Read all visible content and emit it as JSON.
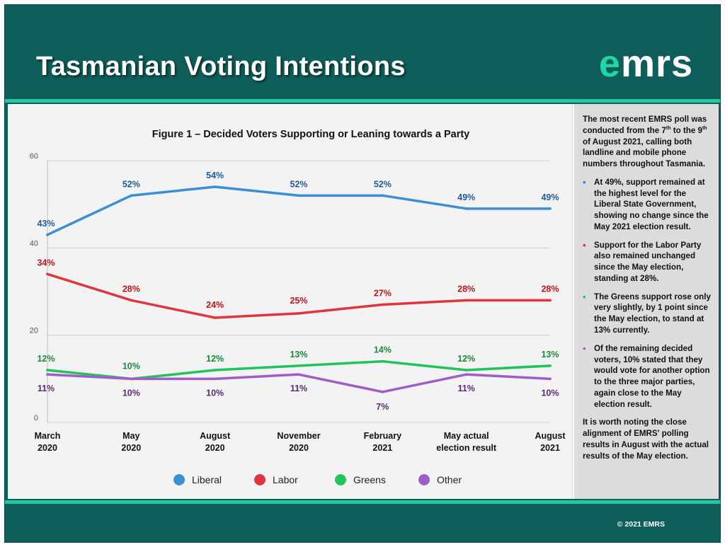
{
  "header": {
    "title": "Tasmanian Voting Intentions",
    "logo_prefix": "e",
    "logo_rest": "mrs"
  },
  "colors": {
    "background": "#0e5e5a",
    "accent_stripe": "#1fc9a2",
    "logo_accent": "#1fd6a4",
    "liberal": "#3b8fd4",
    "labor": "#e0353b",
    "greens": "#22c45a",
    "other": "#a05cc8"
  },
  "chart_data": {
    "type": "line",
    "title": "Figure 1 – Decided Voters Supporting or Leaning towards a Party",
    "categories": [
      [
        "March",
        "2020"
      ],
      [
        "May",
        "2020"
      ],
      [
        "August",
        "2020"
      ],
      [
        "November",
        "2020"
      ],
      [
        "February",
        "2021"
      ],
      [
        "May actual",
        "election result"
      ],
      [
        "August",
        "2021"
      ]
    ],
    "ylim": [
      0,
      60
    ],
    "yticks": [
      "0",
      "20",
      "40",
      "60"
    ],
    "grid": true,
    "legend_position": "bottom",
    "series": [
      {
        "name": "Liberal",
        "color": "#3b8fd4",
        "label_color": "#1f5a9c",
        "values": [
          43,
          52,
          54,
          52,
          52,
          49,
          49
        ],
        "labels": [
          "43%",
          "52%",
          "54%",
          "52%",
          "52%",
          "49%",
          "49%"
        ]
      },
      {
        "name": "Labor",
        "color": "#e0353b",
        "label_color": "#c0151c",
        "values": [
          34,
          28,
          24,
          25,
          27,
          28,
          28
        ],
        "labels": [
          "34%",
          "28%",
          "24%",
          "25%",
          "27%",
          "28%",
          "28%"
        ]
      },
      {
        "name": "Greens",
        "color": "#22c45a",
        "label_color": "#1b8a3c",
        "values": [
          12,
          10,
          12,
          13,
          14,
          12,
          13
        ],
        "labels": [
          "12%",
          "10%",
          "12%",
          "13%",
          "14%",
          "12%",
          "13%"
        ]
      },
      {
        "name": "Other",
        "color": "#a05cc8",
        "label_color": "#5a2a7a",
        "values": [
          11,
          10,
          10,
          11,
          7,
          11,
          10
        ],
        "labels": [
          "11%",
          "10%",
          "10%",
          "11%",
          "7%",
          "11%",
          "10%"
        ]
      }
    ]
  },
  "side_panel": {
    "intro": "The most recent EMRS poll was conducted from the 7th to the 9th of August 2021, calling both landline and mobile phone numbers throughout Tasmania.",
    "bullets": [
      {
        "color": "#2f7fd0",
        "text": "At 49%, support remained at the highest level for the Liberal State Government, showing no change since the May 2021 election result."
      },
      {
        "color": "#e0353b",
        "text": "Support for the Labor Party also remained unchanged since the May election, standing at 28%."
      },
      {
        "color": "#22c45a",
        "text": "The Greens support rose only very slightly, by 1 point since the May election, to stand at 13% currently."
      },
      {
        "color": "#a05cc8",
        "text": "Of the remaining decided voters, 10% stated that they would vote for another option to the three major parties, again close to the May election result."
      }
    ],
    "closing": "It is worth noting the close alignment of EMRS' polling results in August with the actual results of the May election."
  },
  "footer": {
    "copyright": "© 2021 EMRS"
  }
}
